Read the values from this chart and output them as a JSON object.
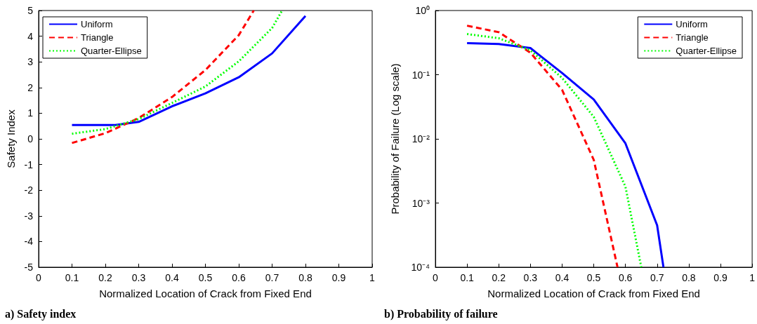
{
  "chart_data": [
    {
      "type": "line",
      "title": "a) Safety index",
      "xlabel": "Normalized Location of Crack from Fixed End",
      "ylabel": "Safety Index",
      "legend": "top left",
      "grid": false,
      "marker": "none",
      "xlim": [
        0,
        1
      ],
      "xticks": [
        0,
        0.1,
        0.2,
        0.3,
        0.4,
        0.5,
        0.6,
        0.7,
        0.8,
        0.9,
        1
      ],
      "ylim": [
        -5,
        5
      ],
      "yticks": [
        -5,
        -4,
        -3,
        -2,
        -1,
        0,
        1,
        2,
        3,
        4,
        5
      ],
      "series": [
        {
          "name": "Uniform",
          "color": "#0000ff",
          "line_style": "solid",
          "x": [
            0.1,
            0.2,
            0.23,
            0.3,
            0.4,
            0.5,
            0.6,
            0.7,
            0.8
          ],
          "values": [
            0.54,
            0.54,
            0.54,
            0.66,
            1.27,
            1.77,
            2.4,
            3.33,
            4.79
          ]
        },
        {
          "name": "Triangle",
          "color": "#ff0000",
          "line_style": "dashed",
          "x": [
            0.1,
            0.2,
            0.3,
            0.4,
            0.5,
            0.6,
            0.645
          ],
          "values": [
            -0.16,
            0.22,
            0.81,
            1.63,
            2.68,
            4.04,
            5
          ]
        },
        {
          "name": "Quarter-Ellipse",
          "color": "#00ff00",
          "line_style": "dotted",
          "x": [
            0.1,
            0.2,
            0.3,
            0.4,
            0.5,
            0.6,
            0.7,
            0.73
          ],
          "values": [
            0.2,
            0.38,
            0.77,
            1.4,
            2.04,
            3.02,
            4.32,
            5
          ]
        }
      ]
    },
    {
      "type": "line",
      "title": "b) Probability of failure",
      "xlabel": "Normalized Location of Crack from Fixed End",
      "ylabel": "Probability of Failure (Log scale)",
      "legend": "top right",
      "grid": false,
      "marker": "none",
      "log": "y",
      "xlim": [
        0,
        1
      ],
      "xticks": [
        0,
        0.1,
        0.2,
        0.3,
        0.4,
        0.5,
        0.6,
        0.7,
        0.8,
        0.9,
        1
      ],
      "ylim": [
        0.0001,
        1
      ],
      "yticks": [
        {
          "value": 0.0001,
          "label": "10⁻⁴"
        },
        {
          "value": 0.001,
          "label": "10⁻³"
        },
        {
          "value": 0.01,
          "label": "10⁻²"
        },
        {
          "value": 0.1,
          "label": "10⁻¹"
        },
        {
          "value": 1,
          "label": "10⁰"
        }
      ],
      "series": [
        {
          "name": "Uniform",
          "color": "#0000ff",
          "line_style": "solid",
          "x": [
            0.1,
            0.2,
            0.3,
            0.4,
            0.5,
            0.6,
            0.7,
            0.72
          ],
          "values": [
            0.31,
            0.3,
            0.26,
            0.106,
            0.041,
            0.0085,
            0.00045,
            0.0001
          ]
        },
        {
          "name": "Triangle",
          "color": "#ff0000",
          "line_style": "dashed",
          "x": [
            0.1,
            0.2,
            0.3,
            0.4,
            0.5,
            0.575
          ],
          "values": [
            0.58,
            0.46,
            0.22,
            0.058,
            0.0047,
            0.0001
          ]
        },
        {
          "name": "Quarter-Ellipse",
          "color": "#00ff00",
          "line_style": "dotted",
          "x": [
            0.1,
            0.2,
            0.3,
            0.4,
            0.5,
            0.6,
            0.65
          ],
          "values": [
            0.43,
            0.37,
            0.24,
            0.089,
            0.022,
            0.0018,
            0.0001
          ]
        }
      ]
    }
  ]
}
